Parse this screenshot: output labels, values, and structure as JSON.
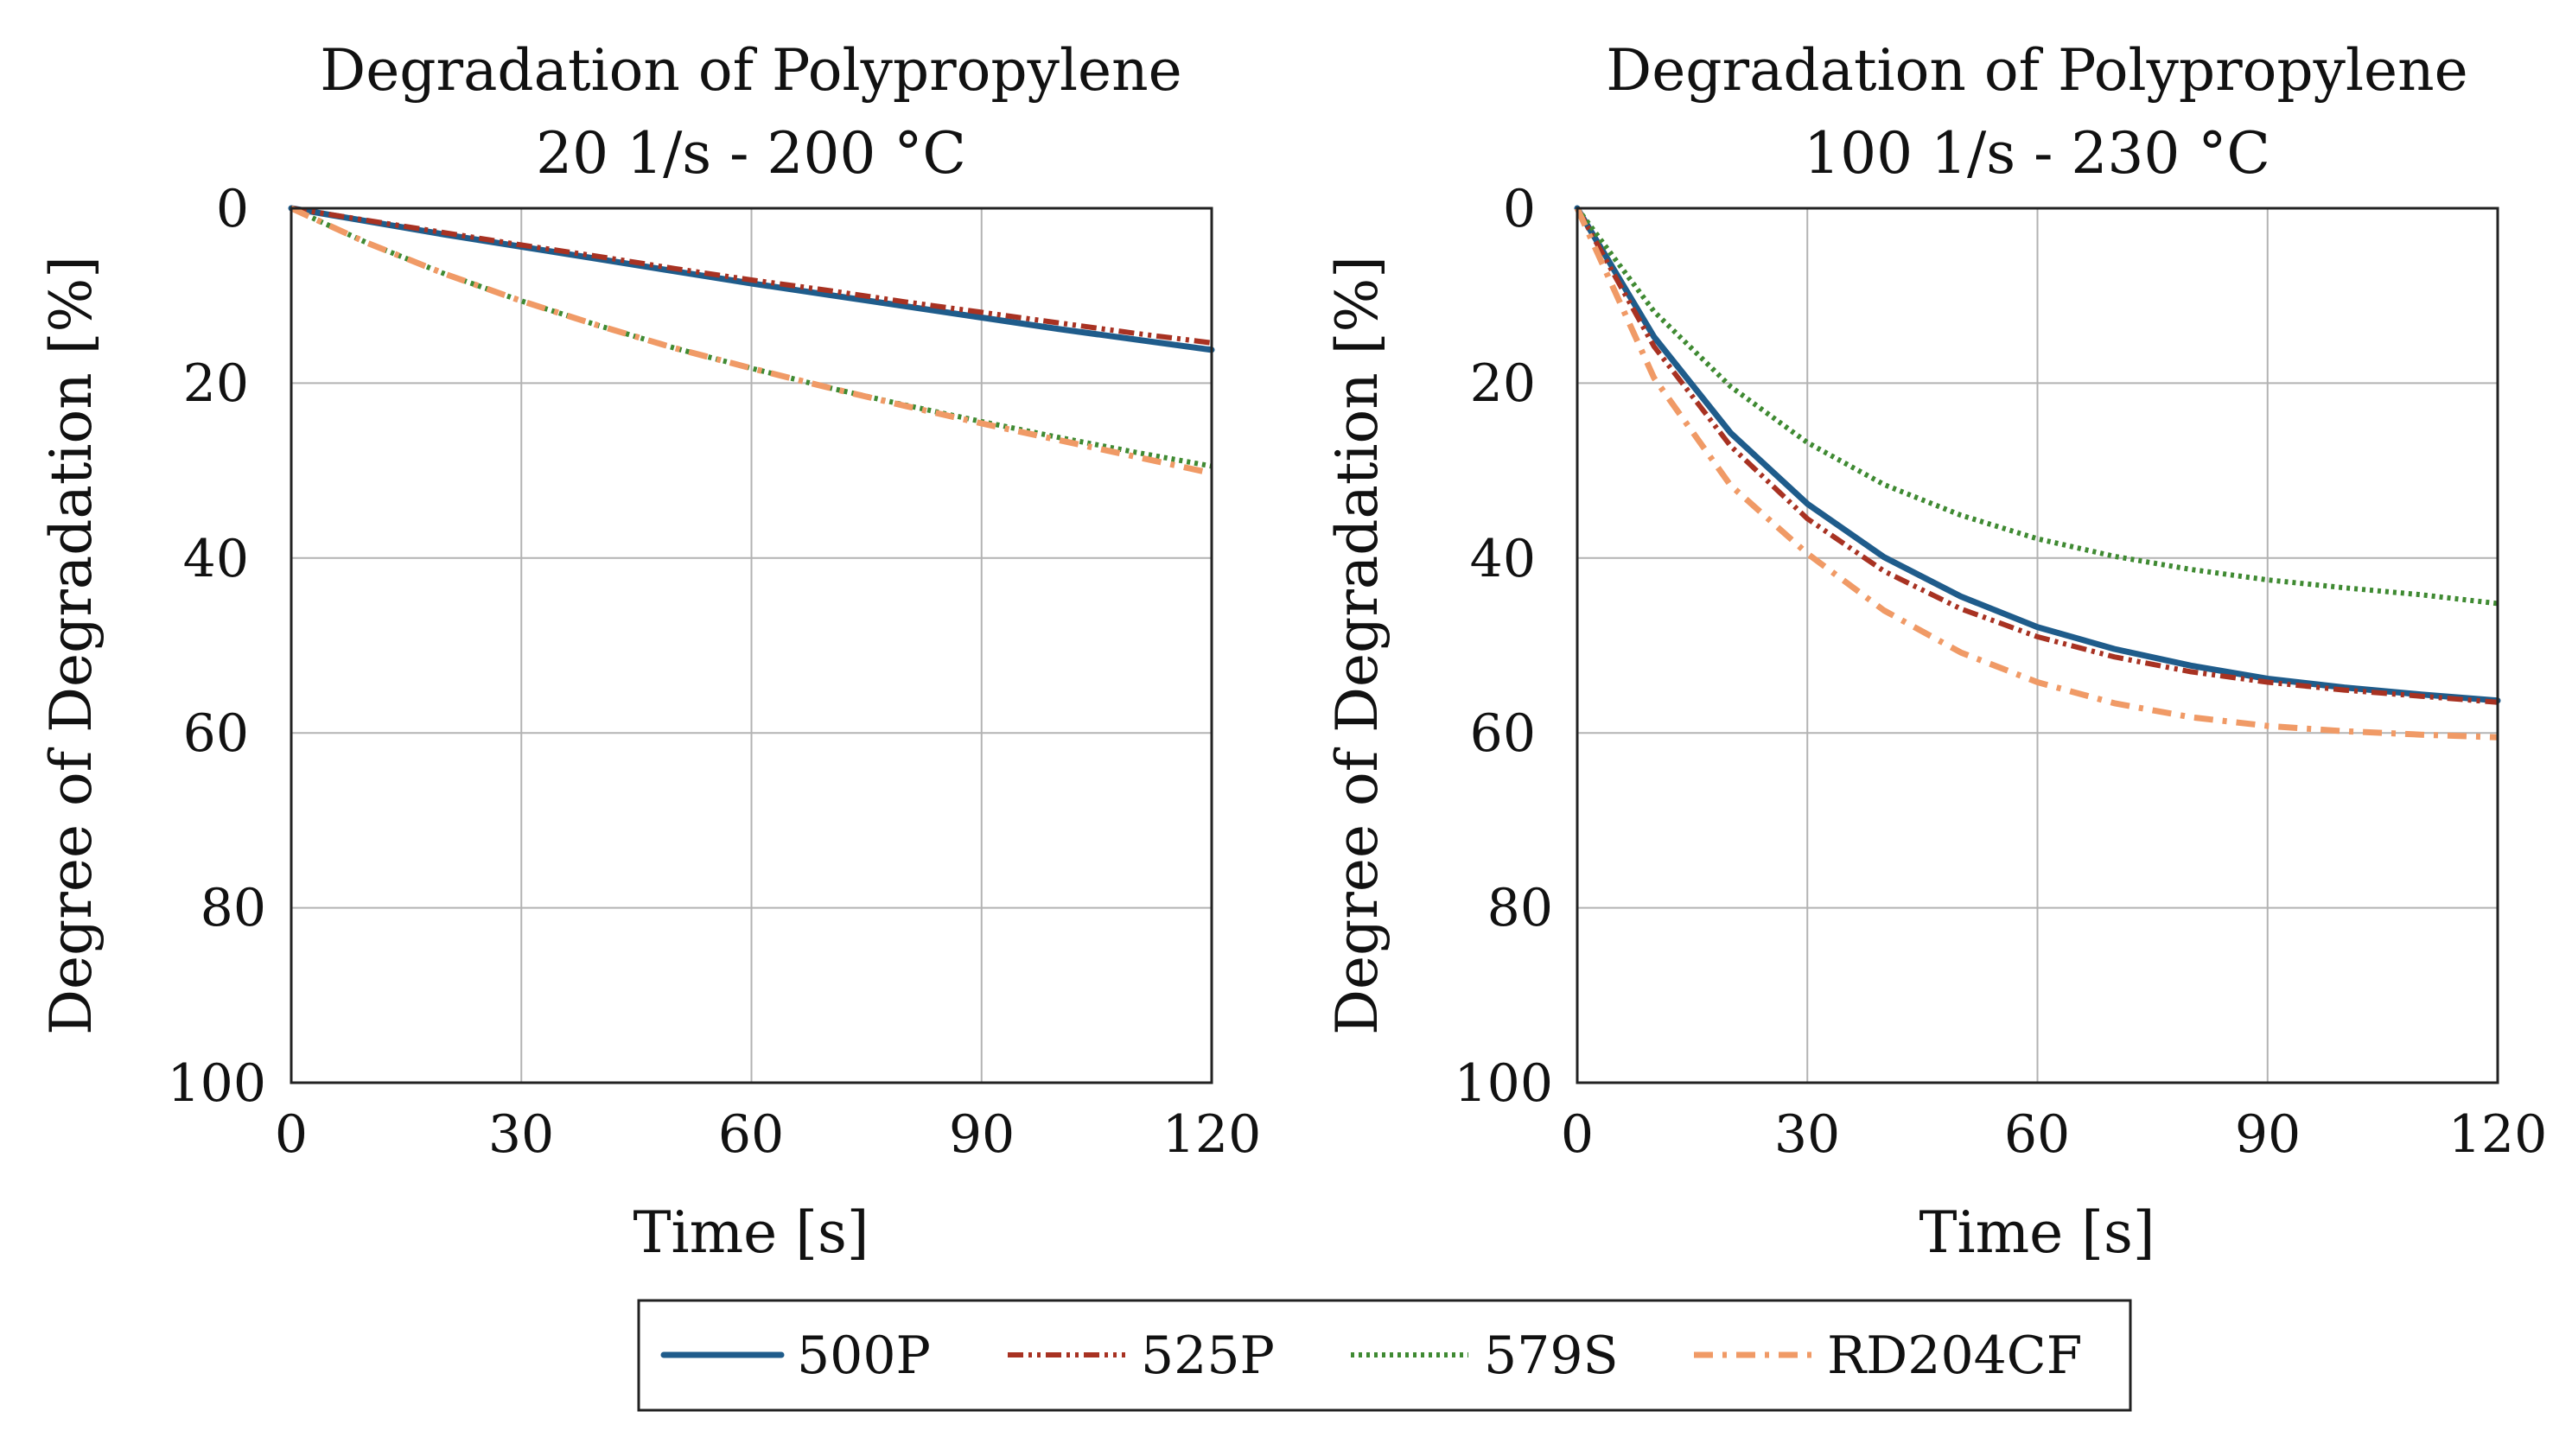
{
  "chart_data": [
    {
      "type": "line",
      "title_lines": [
        "Degradation of Polypropylene",
        "20 1/s - 200 °C"
      ],
      "xlabel": "Time [s]",
      "ylabel": "Degree of Degradation [%]",
      "xlim": [
        0,
        120
      ],
      "ylim": [
        0,
        100
      ],
      "y_inverted": true,
      "grid": true,
      "x_ticks": [
        0,
        30,
        60,
        90,
        120
      ],
      "y_ticks": [
        0,
        20,
        40,
        60,
        80,
        100
      ],
      "x": [
        0,
        10,
        20,
        30,
        40,
        50,
        60,
        70,
        80,
        90,
        100,
        110,
        120
      ],
      "series": [
        {
          "name": "500P",
          "values": [
            0,
            1.5,
            3.0,
            4.4,
            5.8,
            7.2,
            8.6,
            9.9,
            11.2,
            12.5,
            13.8,
            15.0,
            16.2
          ]
        },
        {
          "name": "525P",
          "values": [
            0,
            1.4,
            2.8,
            4.2,
            5.5,
            6.9,
            8.2,
            9.4,
            10.7,
            11.9,
            13.1,
            14.3,
            15.4
          ]
        },
        {
          "name": "579S",
          "values": [
            0,
            4.0,
            7.5,
            10.6,
            13.4,
            16.0,
            18.3,
            20.5,
            22.5,
            24.4,
            26.2,
            27.9,
            29.5
          ]
        },
        {
          "name": "RD204CF",
          "values": [
            0,
            4.0,
            7.5,
            10.6,
            13.4,
            16.0,
            18.3,
            20.5,
            22.6,
            24.6,
            26.5,
            28.4,
            30.3
          ]
        }
      ]
    },
    {
      "type": "line",
      "title_lines": [
        "Degradation of Polypropylene",
        "100 1/s - 230 °C"
      ],
      "xlabel": "Time [s]",
      "ylabel": "Degree of Degradation [%]",
      "xlim": [
        0,
        120
      ],
      "ylim": [
        0,
        100
      ],
      "y_inverted": true,
      "grid": true,
      "x_ticks": [
        0,
        30,
        60,
        90,
        120
      ],
      "y_ticks": [
        0,
        20,
        40,
        60,
        80,
        100
      ],
      "x": [
        0,
        10,
        20,
        30,
        40,
        50,
        60,
        70,
        80,
        90,
        100,
        110,
        120
      ],
      "series": [
        {
          "name": "500P",
          "values": [
            0,
            14.7,
            25.7,
            33.8,
            39.9,
            44.4,
            47.9,
            50.4,
            52.3,
            53.8,
            54.8,
            55.6,
            56.3
          ]
        },
        {
          "name": "525P",
          "values": [
            0,
            15.8,
            27.2,
            35.5,
            41.5,
            45.8,
            49.0,
            51.3,
            53.0,
            54.2,
            55.1,
            55.8,
            56.5
          ]
        },
        {
          "name": "579S",
          "values": [
            0,
            11.8,
            20.4,
            26.8,
            31.6,
            35.1,
            37.8,
            39.8,
            41.3,
            42.5,
            43.4,
            44.2,
            45.2
          ]
        },
        {
          "name": "RD204CF",
          "values": [
            0,
            19.4,
            31.7,
            39.5,
            46.0,
            50.8,
            54.2,
            56.6,
            58.2,
            59.2,
            59.8,
            60.2,
            60.5
          ]
        }
      ]
    }
  ],
  "legend": {
    "entries": [
      {
        "name": "500P",
        "color": "#1f5c8b",
        "style": "solid"
      },
      {
        "name": "525P",
        "color": "#a83222",
        "style": "dash-dot-dot"
      },
      {
        "name": "579S",
        "color": "#3f8a32",
        "style": "dotted"
      },
      {
        "name": "RD204CF",
        "color": "#f09a66",
        "style": "dash-dot"
      }
    ],
    "placement": "bottom-center"
  }
}
